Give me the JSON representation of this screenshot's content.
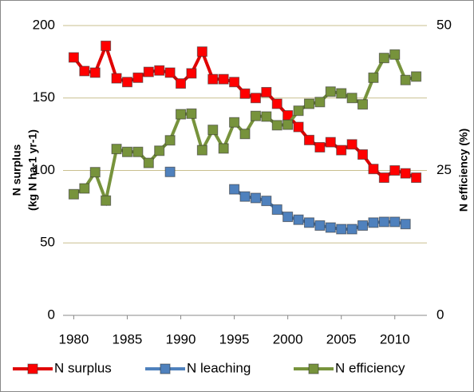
{
  "chart_data": {
    "type": "line",
    "x": [
      1980,
      1981,
      1982,
      1983,
      1984,
      1985,
      1986,
      1987,
      1988,
      1989,
      1990,
      1991,
      1992,
      1993,
      1994,
      1995,
      1996,
      1997,
      1998,
      1999,
      2000,
      2001,
      2002,
      2003,
      2004,
      2005,
      2006,
      2007,
      2008,
      2009,
      2010,
      2011,
      2012
    ],
    "xlim": [
      1979,
      2013
    ],
    "xticks": [
      1980,
      1985,
      1990,
      1995,
      2000,
      2005,
      2010
    ],
    "ylim": [
      0,
      200
    ],
    "yticks": [
      0,
      50,
      100,
      150,
      200
    ],
    "y2lim": [
      0,
      50
    ],
    "y2ticks": [
      0,
      25,
      50
    ],
    "y_label": [
      "N surplus",
      "(kg N ha-1 yr-1)"
    ],
    "y2_label": "N efficiency (%)",
    "grid": true,
    "grid_color": "#c9bf8f",
    "legend": "bottom",
    "series": [
      {
        "name": "N surplus",
        "color": "#e00000",
        "marker_color": "#ff0000",
        "values": [
          178,
          168.6,
          167.5,
          186,
          163.6,
          161,
          164,
          168,
          169,
          167.5,
          160,
          167,
          182,
          163,
          163,
          161,
          153,
          150,
          154,
          146,
          138,
          130,
          121,
          116,
          119.5,
          114,
          118,
          111,
          101,
          95,
          100,
          98,
          95
        ]
      },
      {
        "name": "N leaching",
        "color": "#4f81bd",
        "marker_color": "#4f81bd",
        "values": [
          null,
          null,
          null,
          null,
          null,
          null,
          null,
          null,
          null,
          99,
          null,
          null,
          null,
          null,
          null,
          87,
          82,
          81,
          79,
          73,
          68,
          66,
          64,
          62,
          60.6,
          59.5,
          59.5,
          62,
          64,
          64.5,
          64.5,
          63,
          null
        ]
      },
      {
        "name": "N efficiency",
        "color": "#77933c",
        "marker_color": "#77933c",
        "axis": "y2",
        "values": [
          20.9,
          21.9,
          24.7,
          19.8,
          28.7,
          28.2,
          28.2,
          26.3,
          28.4,
          30.2,
          34.7,
          34.8,
          28.5,
          32,
          28.8,
          33.3,
          31.3,
          34.4,
          34.3,
          32.8,
          32.9,
          35.3,
          36.5,
          36.8,
          38.6,
          38.3,
          37.5,
          36.4,
          41,
          44.4,
          45,
          40.6,
          41.2
        ]
      }
    ]
  }
}
